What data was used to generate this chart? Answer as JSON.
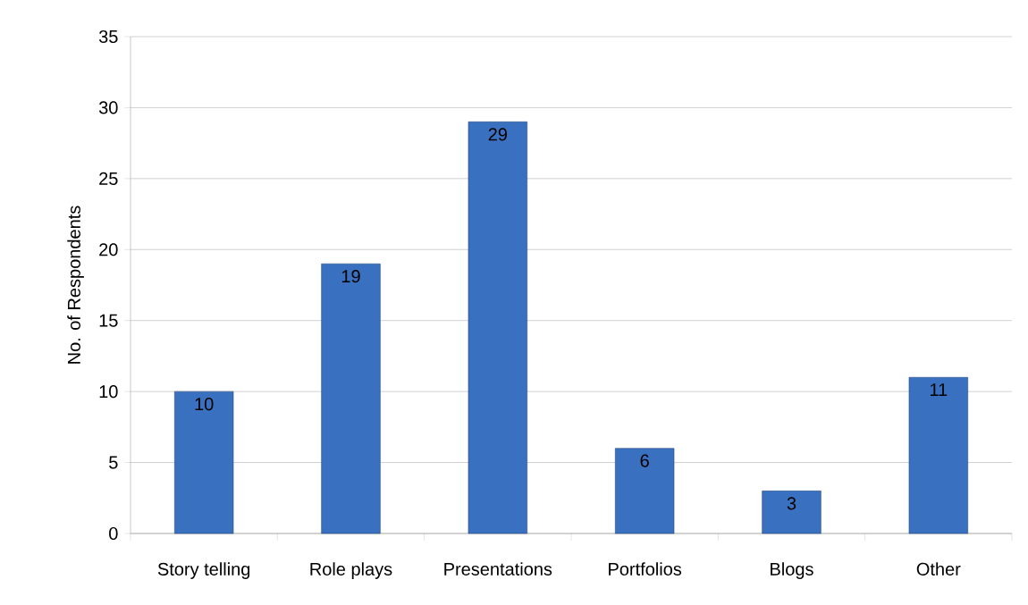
{
  "chart_data": {
    "type": "bar",
    "ylabel": "No. of Respondents",
    "categories": [
      "Story telling",
      "Role plays",
      "Presentations",
      "Portfolios",
      "Blogs",
      "Other"
    ],
    "values": [
      10,
      19,
      29,
      6,
      3,
      11
    ],
    "color": "#3a70c0",
    "ylim": [
      0,
      35
    ],
    "yticks": [
      0,
      5,
      10,
      15,
      20,
      25,
      30,
      35
    ],
    "grid": "y",
    "data_labels": true
  }
}
